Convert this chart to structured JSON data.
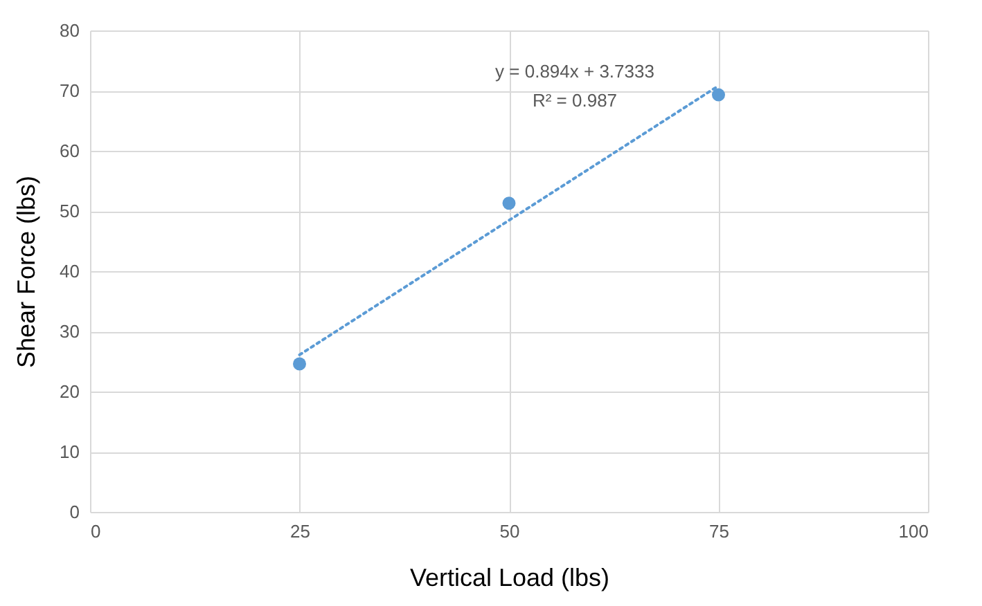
{
  "chart_data": {
    "type": "scatter",
    "xlabel": "Vertical Load (lbs)",
    "ylabel": "Shear Force (lbs)",
    "x": [
      25,
      50,
      75
    ],
    "series": [
      {
        "type": "scatter",
        "color": "#5b9bd5",
        "values": [
          24.6,
          51.3,
          69.3
        ],
        "marker": "circle"
      },
      {
        "type": "line",
        "color": "#5b9bd5",
        "x": [
          25,
          75
        ],
        "values": [
          26.1,
          70.8
        ],
        "line_style": "dotted",
        "marker": "none"
      }
    ],
    "annotations": [
      "y = 0.894x + 3.7333",
      "R² = 0.987"
    ],
    "xlim": [
      0,
      100
    ],
    "xticks": [
      0,
      25,
      50,
      75,
      100
    ],
    "ylim": [
      0,
      80
    ],
    "yticks": [
      0,
      10,
      20,
      30,
      40,
      50,
      60,
      70,
      80
    ],
    "grid": true
  }
}
